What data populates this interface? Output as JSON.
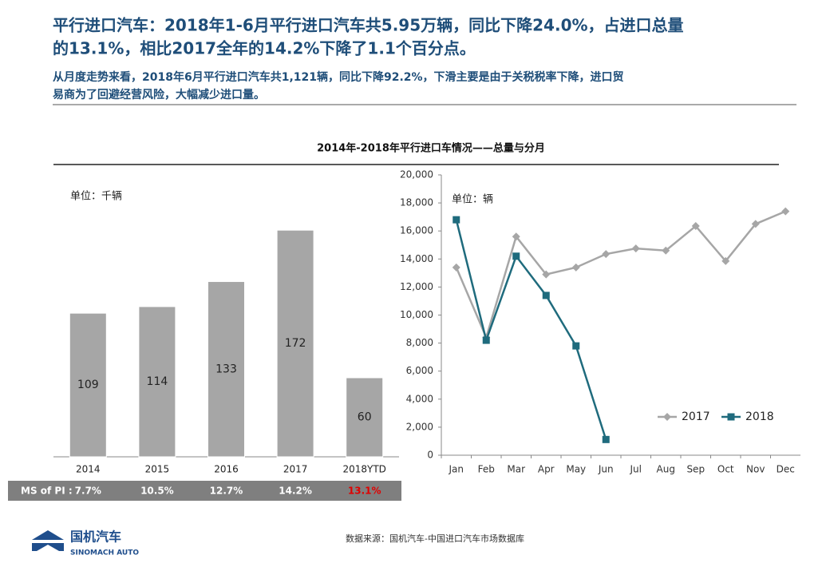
{
  "headline": [
    "平行进口汽车：2018年1-6月平行进口汽车共5.95万辆，同比下降24.0%，占进口总量",
    "的13.1%，相比2017全年的14.2%下降了1.1个百分点。"
  ],
  "subhead": [
    "从月度走势来看，2018年6月平行进口汽车共1,121辆，同比下降92.2%，下滑主要是由于关税税率下降，进口贸",
    "易商为了回避经营风险，大幅减少进口量。"
  ],
  "section_title": "2014年-2018年平行进口车情况——总量与分月",
  "chart_data": [
    {
      "type": "bar",
      "annotation": "单位：千辆",
      "color": "#a6a6a6",
      "categories": [
        "2014",
        "2015",
        "2016",
        "2017",
        "2018YTD"
      ],
      "values": [
        109,
        114,
        133,
        172,
        60
      ],
      "ms_label": "MS of PI :",
      "ms_values": [
        7.7,
        10.5,
        12.7,
        14.2,
        13.1
      ],
      "ms_value_labels": [
        "7.7%",
        "10.5%",
        "12.7%",
        "14.2%",
        "13.1%"
      ]
    },
    {
      "type": "line",
      "annotation": "单位：辆",
      "legend": "bottom-right",
      "categories": [
        "Jan",
        "Feb",
        "Mar",
        "Apr",
        "May",
        "Jun",
        "Jul",
        "Aug",
        "Sep",
        "Oct",
        "Nov",
        "Dec"
      ],
      "ylim": [
        0,
        20000
      ],
      "yticks": [
        0,
        {
          "value": 2000,
          "label": "2,000"
        },
        {
          "value": 4000,
          "label": "4,000"
        },
        {
          "value": 6000,
          "label": "6,000"
        },
        {
          "value": 8000,
          "label": "8,000"
        },
        {
          "value": 10000,
          "label": "10,000"
        },
        {
          "value": 12000,
          "label": "12,000"
        },
        {
          "value": 14000,
          "label": "14,000"
        },
        {
          "value": 16000,
          "label": "16,000"
        },
        {
          "value": 18000,
          "label": "18,000"
        },
        {
          "value": 20000,
          "label": "20,000"
        }
      ],
      "series": [
        {
          "name": "2017",
          "color": "#a6a6a6",
          "marker": "diamond",
          "values": [
            13400,
            8400,
            15600,
            12900,
            13400,
            14350,
            14750,
            14600,
            16350,
            13850,
            16500,
            17400
          ]
        },
        {
          "name": "2018",
          "color": "#1f6b7d",
          "marker": "square",
          "values": [
            16800,
            8200,
            14200,
            11400,
            7800,
            1121,
            null,
            null,
            null,
            null,
            null,
            null
          ]
        }
      ]
    }
  ],
  "source": "数据来源：国机汽车-中国进口汽车市场数据库",
  "logo": {
    "name": "国机汽车",
    "subname": "SINOMACH AUTO"
  }
}
